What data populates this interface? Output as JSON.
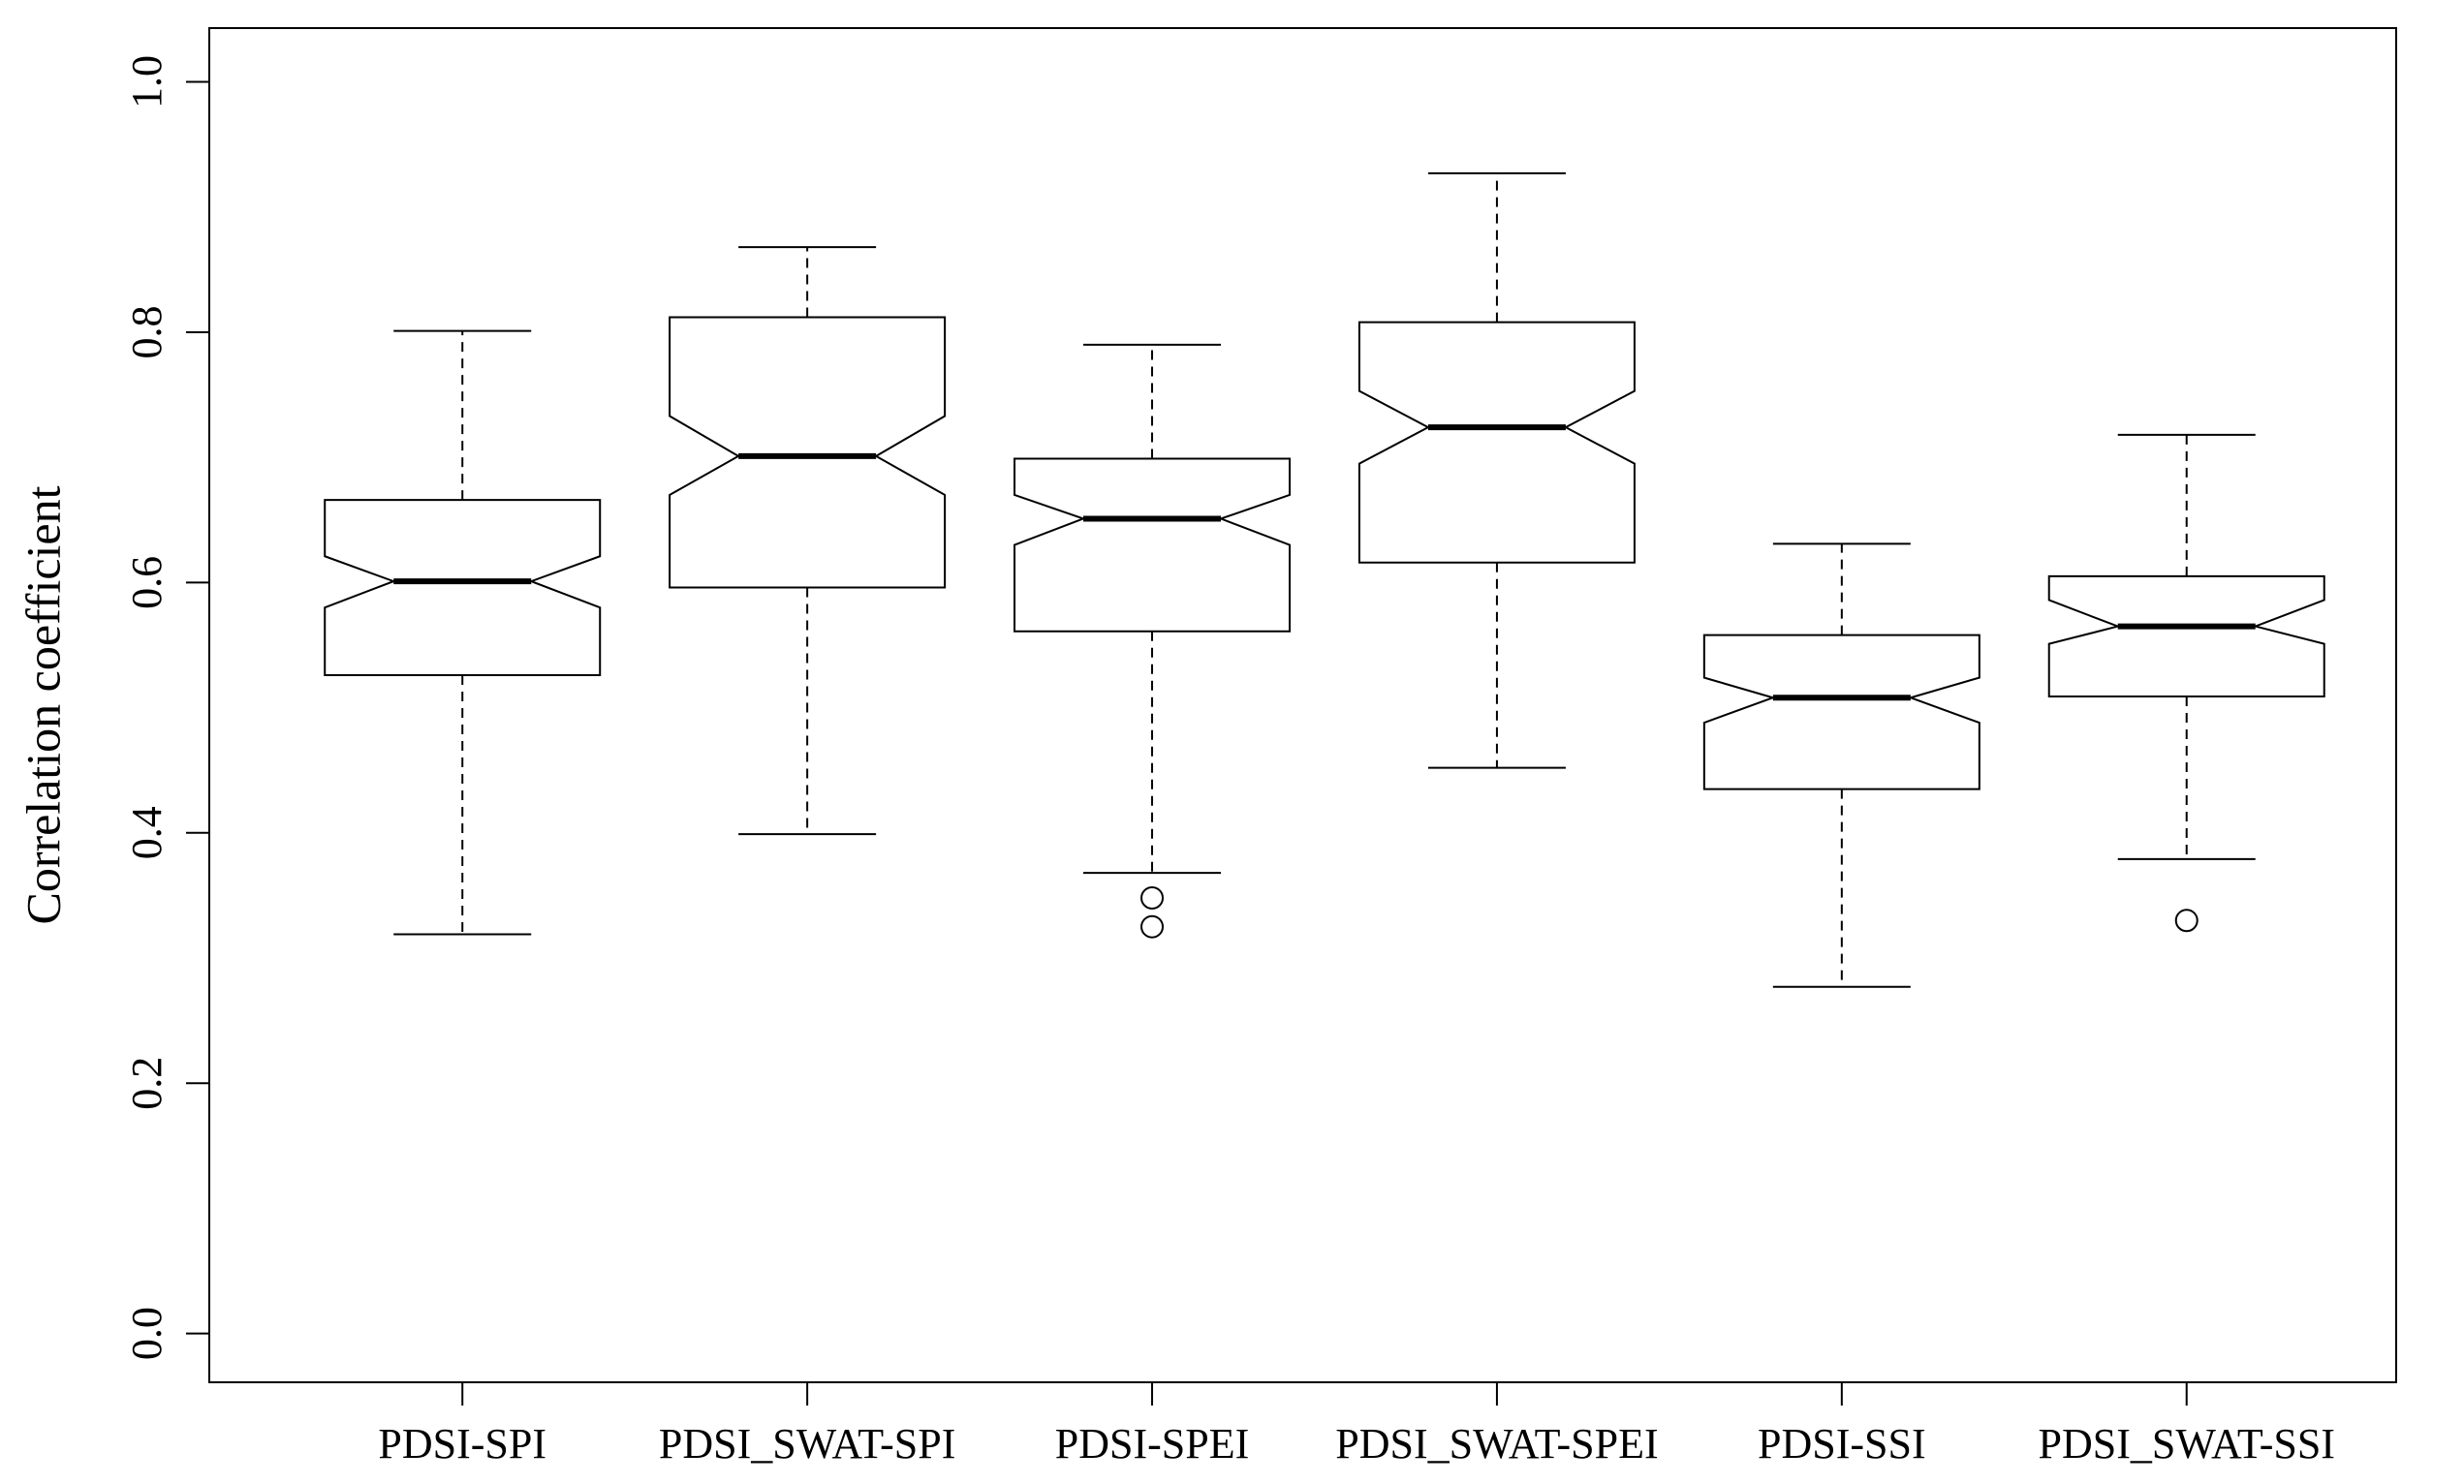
{
  "chart_data": {
    "type": "box",
    "notched": true,
    "ylabel": "Correlation coefficient",
    "categories": [
      "PDSI-SPI",
      "PDSI_SWAT-SPI",
      "PDSI-SPEI",
      "PDSI_SWAT-SPEI",
      "PDSI-SSI",
      "PDSI_SWAT-SSI"
    ],
    "boxes": [
      {
        "whisker_low": 0.319,
        "q1": 0.526,
        "notch_low": 0.58,
        "median": 0.601,
        "notch_high": 0.621,
        "q3": 0.666,
        "whisker_high": 0.801,
        "outliers": []
      },
      {
        "whisker_low": 0.399,
        "q1": 0.596,
        "notch_low": 0.67,
        "median": 0.701,
        "notch_high": 0.733,
        "q3": 0.812,
        "whisker_high": 0.868,
        "outliers": []
      },
      {
        "whisker_low": 0.368,
        "q1": 0.561,
        "notch_low": 0.63,
        "median": 0.651,
        "notch_high": 0.67,
        "q3": 0.699,
        "whisker_high": 0.79,
        "outliers": [
          0.348,
          0.325
        ]
      },
      {
        "whisker_low": 0.452,
        "q1": 0.616,
        "notch_low": 0.695,
        "median": 0.724,
        "notch_high": 0.753,
        "q3": 0.808,
        "whisker_high": 0.927,
        "outliers": []
      },
      {
        "whisker_low": 0.277,
        "q1": 0.435,
        "notch_low": 0.488,
        "median": 0.508,
        "notch_high": 0.524,
        "q3": 0.558,
        "whisker_high": 0.631,
        "outliers": []
      },
      {
        "whisker_low": 0.379,
        "q1": 0.509,
        "notch_low": 0.551,
        "median": 0.565,
        "notch_high": 0.586,
        "q3": 0.605,
        "whisker_high": 0.718,
        "outliers": [
          0.33
        ]
      }
    ],
    "ylim": [
      -0.039,
      1.043
    ],
    "yticks": [
      {
        "value": 0,
        "label": "0.0"
      },
      0.2,
      0.4,
      0.6,
      0.8,
      {
        "value": 1,
        "label": "1.0"
      }
    ],
    "color": "#000000"
  }
}
